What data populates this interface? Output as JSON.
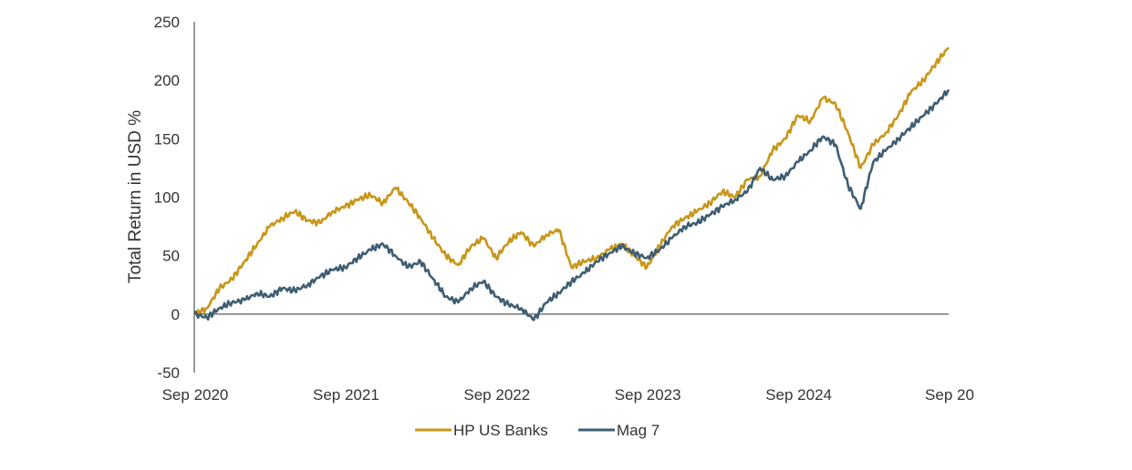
{
  "chart_data": {
    "type": "line",
    "title": "",
    "xlabel": "",
    "ylabel": "Total Return in USD %",
    "ylim": [
      -50,
      250
    ],
    "yticks": [
      -50,
      0,
      50,
      100,
      150,
      200,
      250
    ],
    "xlim": [
      "2020-09",
      "2025-09"
    ],
    "xtick_labels": [
      "Sep 2020",
      "Sep 2021",
      "Sep 2022",
      "Sep 2023",
      "Sep 2024",
      "Sep 20"
    ],
    "xtick_dates": [
      "2020-09",
      "2021-09",
      "2022-09",
      "2023-09",
      "2024-09",
      "2025-09"
    ],
    "grid": false,
    "legend": "bottom",
    "series": [
      {
        "name": "HP US Banks",
        "color": "#C9961A",
        "points": [
          [
            "2020-09",
            0
          ],
          [
            "2020-10",
            5
          ],
          [
            "2020-11",
            22
          ],
          [
            "2020-12",
            30
          ],
          [
            "2021-01",
            45
          ],
          [
            "2021-02",
            60
          ],
          [
            "2021-03",
            75
          ],
          [
            "2021-04",
            82
          ],
          [
            "2021-05",
            88
          ],
          [
            "2021-06",
            80
          ],
          [
            "2021-07",
            78
          ],
          [
            "2021-08",
            88
          ],
          [
            "2021-09",
            92
          ],
          [
            "2021-10",
            98
          ],
          [
            "2021-11",
            102
          ],
          [
            "2021-12",
            95
          ],
          [
            "2022-01",
            108
          ],
          [
            "2022-02",
            96
          ],
          [
            "2022-03",
            82
          ],
          [
            "2022-04",
            65
          ],
          [
            "2022-05",
            50
          ],
          [
            "2022-06",
            42
          ],
          [
            "2022-07",
            58
          ],
          [
            "2022-08",
            65
          ],
          [
            "2022-09",
            48
          ],
          [
            "2022-10",
            62
          ],
          [
            "2022-11",
            70
          ],
          [
            "2022-12",
            58
          ],
          [
            "2023-01",
            68
          ],
          [
            "2023-02",
            72
          ],
          [
            "2023-03",
            40
          ],
          [
            "2023-04",
            45
          ],
          [
            "2023-05",
            48
          ],
          [
            "2023-06",
            55
          ],
          [
            "2023-07",
            60
          ],
          [
            "2023-08",
            50
          ],
          [
            "2023-09",
            40
          ],
          [
            "2023-10",
            58
          ],
          [
            "2023-11",
            75
          ],
          [
            "2023-12",
            82
          ],
          [
            "2024-01",
            88
          ],
          [
            "2024-02",
            95
          ],
          [
            "2024-03",
            105
          ],
          [
            "2024-04",
            100
          ],
          [
            "2024-05",
            115
          ],
          [
            "2024-06",
            118
          ],
          [
            "2024-07",
            140
          ],
          [
            "2024-08",
            150
          ],
          [
            "2024-09",
            170
          ],
          [
            "2024-10",
            165
          ],
          [
            "2024-11",
            185
          ],
          [
            "2024-12",
            180
          ],
          [
            "2025-01",
            155
          ],
          [
            "2025-02",
            125
          ],
          [
            "2025-03",
            145
          ],
          [
            "2025-04",
            155
          ],
          [
            "2025-05",
            170
          ],
          [
            "2025-06",
            190
          ],
          [
            "2025-07",
            200
          ],
          [
            "2025-08",
            215
          ],
          [
            "2025-09",
            228
          ]
        ]
      },
      {
        "name": "Mag 7",
        "color": "#3F5E73",
        "points": [
          [
            "2020-09",
            0
          ],
          [
            "2020-10",
            -3
          ],
          [
            "2020-11",
            5
          ],
          [
            "2020-12",
            10
          ],
          [
            "2021-01",
            12
          ],
          [
            "2021-02",
            18
          ],
          [
            "2021-03",
            15
          ],
          [
            "2021-04",
            22
          ],
          [
            "2021-05",
            20
          ],
          [
            "2021-06",
            25
          ],
          [
            "2021-07",
            32
          ],
          [
            "2021-08",
            38
          ],
          [
            "2021-09",
            40
          ],
          [
            "2021-10",
            48
          ],
          [
            "2021-11",
            55
          ],
          [
            "2021-12",
            60
          ],
          [
            "2022-01",
            50
          ],
          [
            "2022-02",
            40
          ],
          [
            "2022-03",
            45
          ],
          [
            "2022-04",
            30
          ],
          [
            "2022-05",
            15
          ],
          [
            "2022-06",
            10
          ],
          [
            "2022-07",
            22
          ],
          [
            "2022-08",
            28
          ],
          [
            "2022-09",
            15
          ],
          [
            "2022-10",
            8
          ],
          [
            "2022-11",
            5
          ],
          [
            "2022-12",
            -5
          ],
          [
            "2023-01",
            10
          ],
          [
            "2023-02",
            18
          ],
          [
            "2023-03",
            28
          ],
          [
            "2023-04",
            35
          ],
          [
            "2023-05",
            45
          ],
          [
            "2023-06",
            52
          ],
          [
            "2023-07",
            58
          ],
          [
            "2023-08",
            52
          ],
          [
            "2023-09",
            48
          ],
          [
            "2023-10",
            55
          ],
          [
            "2023-11",
            65
          ],
          [
            "2023-12",
            75
          ],
          [
            "2024-01",
            78
          ],
          [
            "2024-02",
            85
          ],
          [
            "2024-03",
            92
          ],
          [
            "2024-04",
            98
          ],
          [
            "2024-05",
            105
          ],
          [
            "2024-06",
            125
          ],
          [
            "2024-07",
            115
          ],
          [
            "2024-08",
            118
          ],
          [
            "2024-09",
            130
          ],
          [
            "2024-10",
            140
          ],
          [
            "2024-11",
            152
          ],
          [
            "2024-12",
            145
          ],
          [
            "2025-01",
            110
          ],
          [
            "2025-02",
            90
          ],
          [
            "2025-03",
            130
          ],
          [
            "2025-04",
            140
          ],
          [
            "2025-05",
            150
          ],
          [
            "2025-06",
            160
          ],
          [
            "2025-07",
            170
          ],
          [
            "2025-08",
            180
          ],
          [
            "2025-09",
            192
          ]
        ]
      }
    ]
  }
}
